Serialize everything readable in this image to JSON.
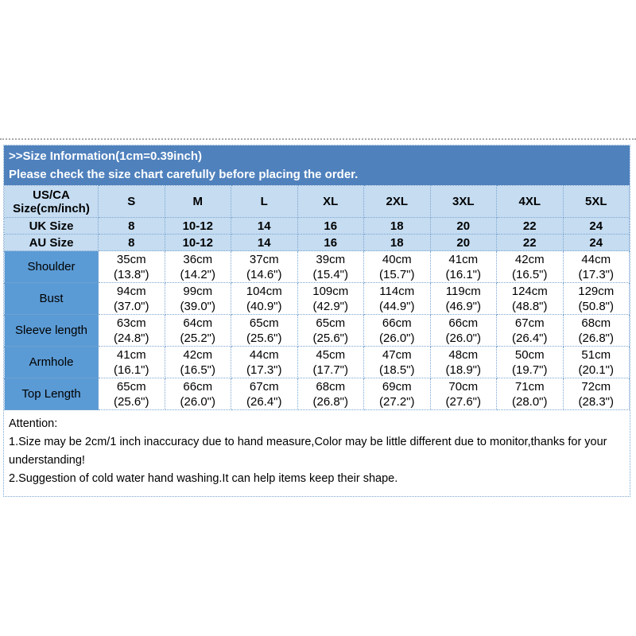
{
  "colors": {
    "banner_bg": "#4f81bd",
    "banner_text": "#ffffff",
    "header_cell_bg": "#c5dcf1",
    "label_cell_bg": "#5b9bd5",
    "grid_border": "#7ca6cf",
    "body_text": "#000000"
  },
  "banner": {
    "line1": ">>Size Information(1cm=0.39inch)",
    "line2": "Please check the size chart carefully before placing the order."
  },
  "size_table": {
    "corner_header": [
      "US/CA",
      "Size(cm/inch)"
    ],
    "columns": [
      "S",
      "M",
      "L",
      "XL",
      "2XL",
      "3XL",
      "4XL",
      "5XL"
    ],
    "size_rows": [
      {
        "label": "UK Size",
        "values": [
          "8",
          "10-12",
          "14",
          "16",
          "18",
          "20",
          "22",
          "24"
        ]
      },
      {
        "label": "AU Size",
        "values": [
          "8",
          "10-12",
          "14",
          "16",
          "18",
          "20",
          "22",
          "24"
        ]
      }
    ],
    "measurement_rows": [
      {
        "label": "Shoulder",
        "cm": [
          "35cm",
          "36cm",
          "37cm",
          "39cm",
          "40cm",
          "41cm",
          "42cm",
          "44cm"
        ],
        "inch": [
          "(13.8\")",
          "(14.2\")",
          "(14.6\")",
          "(15.4\")",
          "(15.7\")",
          "(16.1\")",
          "(16.5\")",
          "(17.3\")"
        ]
      },
      {
        "label": "Bust",
        "cm": [
          "94cm",
          "99cm",
          "104cm",
          "109cm",
          "114cm",
          "119cm",
          "124cm",
          "129cm"
        ],
        "inch": [
          "(37.0\")",
          "(39.0\")",
          "(40.9\")",
          "(42.9\")",
          "(44.9\")",
          "(46.9\")",
          "(48.8\")",
          "(50.8\")"
        ]
      },
      {
        "label": "Sleeve length",
        "cm": [
          "63cm",
          "64cm",
          "65cm",
          "65cm",
          "66cm",
          "66cm",
          "67cm",
          "68cm"
        ],
        "inch": [
          "(24.8\")",
          "(25.2\")",
          "(25.6\")",
          "(25.6\")",
          "(26.0\")",
          "(26.0\")",
          "(26.4\")",
          "(26.8\")"
        ]
      },
      {
        "label": "Armhole",
        "cm": [
          "41cm",
          "42cm",
          "44cm",
          "45cm",
          "47cm",
          "48cm",
          "50cm",
          "51cm"
        ],
        "inch": [
          "(16.1\")",
          "(16.5\")",
          "(17.3\")",
          "(17.7\")",
          "(18.5\")",
          "(18.9\")",
          "(19.7\")",
          "(20.1\")"
        ]
      },
      {
        "label": "Top Length",
        "cm": [
          "65cm",
          "66cm",
          "67cm",
          "68cm",
          "69cm",
          "70cm",
          "71cm",
          "72cm"
        ],
        "inch": [
          "(25.6\")",
          "(26.0\")",
          "(26.4\")",
          "(26.8\")",
          "(27.2\")",
          "(27.6\")",
          "(28.0\")",
          "(28.3\")"
        ]
      }
    ]
  },
  "attention": {
    "title": "Attention:",
    "lines": [
      "1.Size may be 2cm/1 inch inaccuracy due to hand measure,Color may be little different due to monitor,thanks for your",
      "understanding!",
      "2.Suggestion of cold water hand washing.It can help items keep their shape."
    ]
  }
}
